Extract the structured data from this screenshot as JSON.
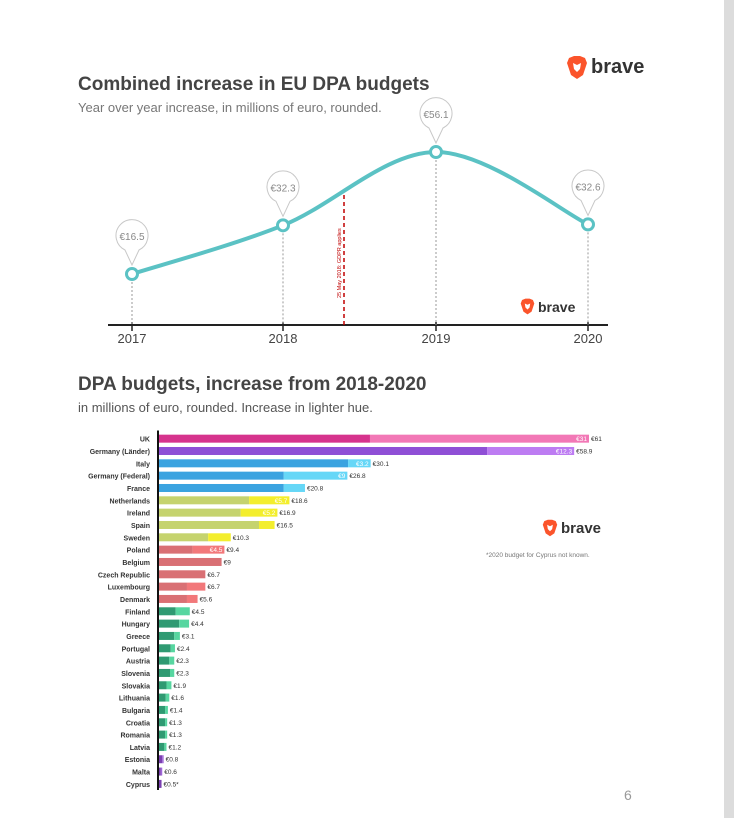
{
  "brand": {
    "name": "brave",
    "accent": "#fb542b"
  },
  "line_chart": {
    "title": "Combined increase in EU DPA budgets",
    "subtitle": "Year over year increase, in millions of euro, rounded."
  },
  "bar_chart": {
    "title": "DPA budgets, increase from 2018-2020",
    "subtitle": "in millions of euro, rounded. Increase in lighter hue.",
    "footnote": "*2020 budget for Cyprus not known."
  },
  "page_number": "6",
  "chart_data": [
    {
      "type": "line",
      "title": "Combined increase in EU DPA budgets",
      "subtitle": "Year over year increase, in millions of euro, rounded.",
      "x": [
        "2017",
        "2018",
        "2019",
        "2020"
      ],
      "values": [
        16.5,
        32.3,
        56.1,
        32.6
      ],
      "labels": [
        "€16.5",
        "€32.3",
        "€56.1",
        "€32.6"
      ],
      "annotation": {
        "text": "25 May 2018: GDPR applies",
        "x_between": [
          "2018",
          "2019"
        ],
        "color": "#c00000"
      },
      "line_color": "#5bc2c4",
      "ylim": [
        0,
        70
      ]
    },
    {
      "type": "bar",
      "orientation": "horizontal",
      "stacked": true,
      "title": "DPA budgets, increase from 2018-2020",
      "subtitle": "in millions of euro, rounded. Increase in lighter hue.",
      "xlim": [
        0,
        61
      ],
      "categories": [
        "UK",
        "Germany (Länder)",
        "Italy",
        "Germany (Federal)",
        "France",
        "Netherlands",
        "Ireland",
        "Spain",
        "Sweden",
        "Poland",
        "Belgium",
        "Czech Republic",
        "Luxembourg",
        "Denmark",
        "Finland",
        "Hungary",
        "Greece",
        "Portugal",
        "Austria",
        "Slovenia",
        "Slovakia",
        "Lithuania",
        "Bulgaria",
        "Croatia",
        "Romania",
        "Latvia",
        "Estonia",
        "Malta",
        "Cyprus"
      ],
      "totals": [
        61,
        58.9,
        30.1,
        26.8,
        20.8,
        18.6,
        16.9,
        16.5,
        10.3,
        9.4,
        9,
        6.7,
        6.7,
        5.6,
        4.5,
        4.4,
        3.1,
        2.4,
        2.3,
        2.3,
        1.9,
        1.6,
        1.4,
        1.3,
        1.3,
        1.2,
        0.8,
        0.6,
        0.5
      ],
      "total_labels": [
        "€61",
        "€58.9",
        "€30.1",
        "€26.8",
        "€20.8",
        "€18.6",
        "€16.9",
        "€16.5",
        "€10.3",
        "€9.4",
        "€9",
        "€6.7",
        "€6.7",
        "€5.6",
        "€4.5",
        "€4.4",
        "€3.1",
        "€2.4",
        "€2.3",
        "€2.3",
        "€1.9",
        "€1.6",
        "€1.4",
        "€1.3",
        "€1.3",
        "€1.2",
        "€0.8",
        "€0.6",
        "€0.5*"
      ],
      "increases": [
        31,
        12.3,
        3.2,
        9,
        3,
        5.7,
        5.2,
        2.2,
        3.2,
        4.5,
        0,
        0,
        2.6,
        1.5,
        2,
        1.4,
        0.8,
        0.6,
        0.7,
        0.6,
        0.7,
        0.5,
        0.4,
        0.3,
        0.3,
        0.3,
        0.2,
        0.2,
        0
      ],
      "increase_labels": [
        "€31",
        "€12.3",
        "€3.2",
        "€9",
        "",
        "€5.7",
        "€5.2",
        "",
        "",
        "€4.5",
        "",
        "",
        "",
        "",
        "",
        "",
        "",
        "",
        "",
        "",
        "",
        "",
        "",
        "",
        "",
        "",
        "",
        "",
        ""
      ],
      "colors": [
        [
          "#d6338d",
          "#f278b6"
        ],
        [
          "#8f4fd6",
          "#bd7cf2"
        ],
        [
          "#3aa3e0",
          "#66d7f7"
        ],
        [
          "#3aa3e0",
          "#66d7f7"
        ],
        [
          "#3aa3e0",
          "#66d7f7"
        ],
        [
          "#c5d36e",
          "#f3ee2d"
        ],
        [
          "#c5d36e",
          "#f3ee2d"
        ],
        [
          "#c5d36e",
          "#f3ee2d"
        ],
        [
          "#c5d36e",
          "#f3ee2d"
        ],
        [
          "#d97074",
          "#f2787a"
        ],
        [
          "#d97074",
          "#f2787a"
        ],
        [
          "#d97074",
          "#f2787a"
        ],
        [
          "#d97074",
          "#f2787a"
        ],
        [
          "#d97074",
          "#f2787a"
        ],
        [
          "#2f9a72",
          "#57d6a0"
        ],
        [
          "#2f9a72",
          "#57d6a0"
        ],
        [
          "#2f9a72",
          "#57d6a0"
        ],
        [
          "#2f9a72",
          "#57d6a0"
        ],
        [
          "#2f9a72",
          "#57d6a0"
        ],
        [
          "#2f9a72",
          "#57d6a0"
        ],
        [
          "#2f9a72",
          "#57d6a0"
        ],
        [
          "#2f9a72",
          "#57d6a0"
        ],
        [
          "#2f9a72",
          "#57d6a0"
        ],
        [
          "#2f9a72",
          "#57d6a0"
        ],
        [
          "#2f9a72",
          "#57d6a0"
        ],
        [
          "#2f9a72",
          "#57d6a0"
        ],
        [
          "#7a3fb0",
          "#a066d8"
        ],
        [
          "#7a3fb0",
          "#a066d8"
        ],
        [
          "#7a3fb0",
          "#a066d8"
        ]
      ]
    }
  ]
}
